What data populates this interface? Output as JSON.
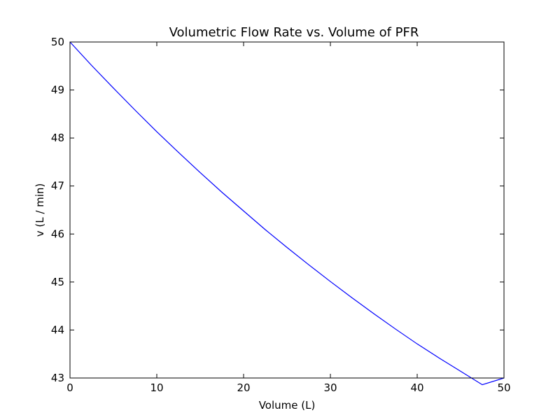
{
  "chart_data": {
    "type": "line",
    "title": "Volumetric Flow Rate  vs.  Volume of PFR",
    "xlabel": "Volume (L)",
    "ylabel": "v (L / min)",
    "xlim": [
      0,
      50
    ],
    "ylim": [
      43,
      50
    ],
    "xticks": [
      0,
      10,
      20,
      30,
      40,
      50
    ],
    "yticks": [
      43,
      44,
      45,
      46,
      47,
      48,
      49,
      50
    ],
    "grid": false,
    "series": [
      {
        "color": "#0000ff",
        "x": [
          0,
          2.5,
          5,
          7.5,
          10,
          12.5,
          15,
          17.5,
          20,
          22.5,
          25,
          27.5,
          30,
          32.5,
          35,
          37.5,
          40,
          42.5,
          45,
          47.5,
          50
        ],
        "y": [
          50.0,
          49.51,
          49.04,
          48.58,
          48.13,
          47.7,
          47.28,
          46.87,
          46.48,
          46.09,
          45.72,
          45.36,
          45.01,
          44.67,
          44.34,
          44.02,
          43.71,
          43.42,
          43.14,
          42.86,
          43.0
        ]
      }
    ]
  }
}
